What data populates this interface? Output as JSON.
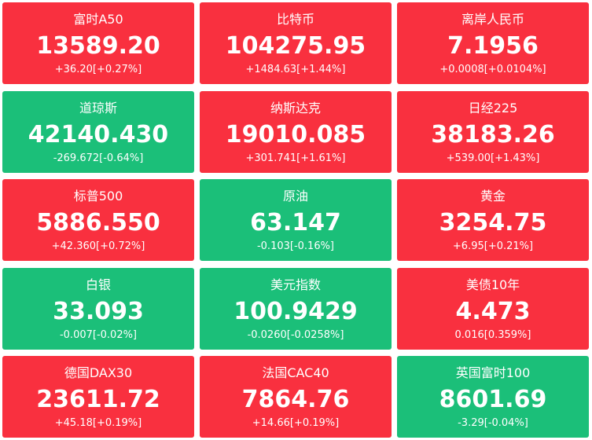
{
  "tiles": [
    {
      "name": "富时A50",
      "price": "13589.20",
      "change": "+36.20[+0.27%]",
      "color": "#f9303f"
    },
    {
      "name": "比特币",
      "price": "104275.95",
      "change": "+1484.63[+1.44%]",
      "color": "#f9303f"
    },
    {
      "name": "离岸人民币",
      "price": "7.1956",
      "change": "+0.0008[+0.0104%]",
      "color": "#f9303f"
    },
    {
      "name": "道琼斯",
      "price": "42140.430",
      "change": "-269.672[-0.64%]",
      "color": "#1bbf79"
    },
    {
      "name": "纳斯达克",
      "price": "19010.085",
      "change": "+301.741[+1.61%]",
      "color": "#f9303f"
    },
    {
      "name": "日经225",
      "price": "38183.26",
      "change": "+539.00[+1.43%]",
      "color": "#f9303f"
    },
    {
      "name": "标普500",
      "price": "5886.550",
      "change": "+42.360[+0.72%]",
      "color": "#f9303f"
    },
    {
      "name": "原油",
      "price": "63.147",
      "change": "-0.103[-0.16%]",
      "color": "#1bbf79"
    },
    {
      "name": "黄金",
      "price": "3254.75",
      "change": "+6.95[+0.21%]",
      "color": "#f9303f"
    },
    {
      "name": "白银",
      "price": "33.093",
      "change": "-0.007[-0.02%]",
      "color": "#1bbf79"
    },
    {
      "name": "美元指数",
      "price": "100.9429",
      "change": "-0.0260[-0.0258%]",
      "color": "#1bbf79"
    },
    {
      "name": "美债10年",
      "price": "4.473",
      "change": "0.016[0.359%]",
      "color": "#f9303f"
    },
    {
      "name": "德国DAX30",
      "price": "23611.72",
      "change": "+45.18[+0.19%]",
      "color": "#f9303f"
    },
    {
      "name": "法国CAC40",
      "price": "7864.76",
      "change": "+14.66[+0.19%]",
      "color": "#f9303f"
    },
    {
      "name": "英国富时100",
      "price": "8601.69",
      "change": "-3.29[-0.04%]",
      "color": "#1bbf79"
    }
  ]
}
